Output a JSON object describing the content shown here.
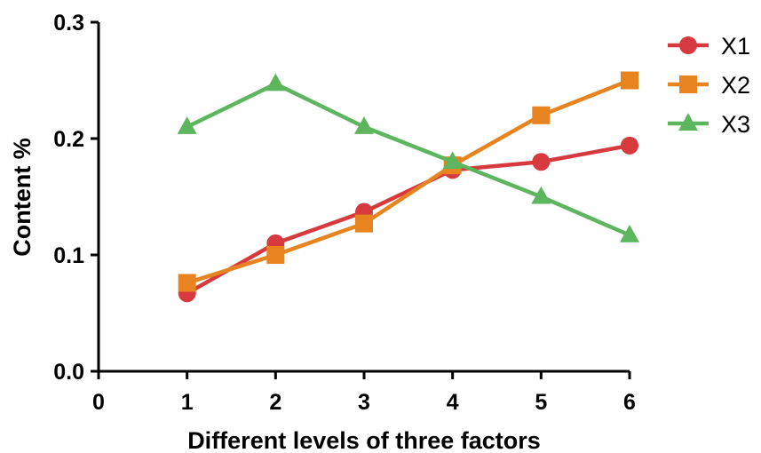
{
  "chart_data": {
    "type": "line",
    "xlabel": "Different levels of three factors",
    "ylabel": "Content %",
    "xlim": [
      0,
      6
    ],
    "ylim": [
      0.0,
      0.3
    ],
    "x_ticks": [
      "0",
      "1",
      "2",
      "3",
      "4",
      "5",
      "6"
    ],
    "y_ticks": [
      "0.0",
      "0.1",
      "0.2",
      "0.3"
    ],
    "x_tick_values": [
      0,
      1,
      2,
      3,
      4,
      5,
      6
    ],
    "y_tick_values": [
      0.0,
      0.1,
      0.2,
      0.3
    ],
    "x": [
      1,
      2,
      3,
      4,
      5,
      6
    ],
    "grid": false,
    "legend_position": "top-right",
    "series": [
      {
        "name": "X1",
        "color": "#d63a3f",
        "marker": "circle",
        "values": [
          0.067,
          0.11,
          0.137,
          0.173,
          0.18,
          0.194
        ]
      },
      {
        "name": "X2",
        "color": "#e8841f",
        "marker": "square",
        "values": [
          0.076,
          0.1,
          0.127,
          0.177,
          0.22,
          0.25
        ]
      },
      {
        "name": "X3",
        "color": "#5db65d",
        "marker": "triangle",
        "values": [
          0.21,
          0.247,
          0.21,
          0.18,
          0.15,
          0.117
        ]
      }
    ]
  }
}
